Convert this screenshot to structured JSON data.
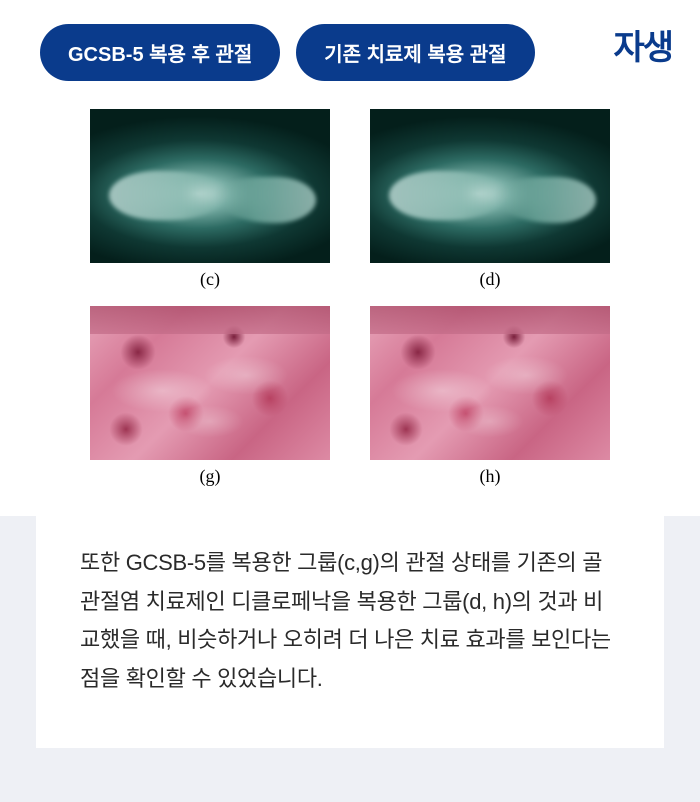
{
  "header": {
    "pill_left": "GCSB-5 복용 후 관절",
    "pill_right": "기존 치료제 복용 관절",
    "logo": "자생"
  },
  "figures": {
    "row1": [
      {
        "type": "xray",
        "caption": "(c)"
      },
      {
        "type": "xray",
        "caption": "(d)"
      }
    ],
    "row2": [
      {
        "type": "histo",
        "caption": "(g)"
      },
      {
        "type": "histo",
        "caption": "(h)"
      }
    ]
  },
  "body_text": "또한 GCSB-5를 복용한 그룹(c,g)의 관절 상태를 기존의 골관절염 치료제인 디클로페낙을 복용한 그룹(d, h)의 것과 비교했을 때, 비슷하거나 오히려 더 나은 치료 효과를 보인다는 점을 확인할 수 있었습니다.",
  "colors": {
    "pill_bg": "#0a3b8c",
    "pill_text": "#ffffff",
    "logo_color": "#0a3b8c",
    "page_bg": "#ffffff",
    "bottom_bg": "#eef0f5",
    "card_bg": "#ffffff",
    "body_text_color": "#2a2a2a"
  }
}
